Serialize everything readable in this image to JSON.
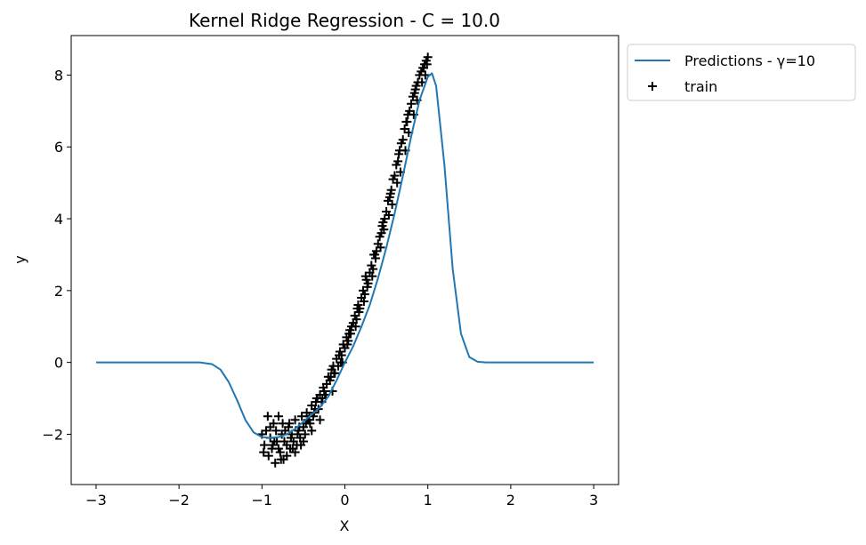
{
  "chart_data": {
    "type": "line",
    "title": "Kernel Ridge Regression - C = 10.0",
    "xlabel": "X",
    "ylabel": "y",
    "xlim": [
      -3.3,
      3.3
    ],
    "ylim": [
      -3.4,
      9.1
    ],
    "xticks": [
      -3,
      -2,
      -1,
      0,
      1,
      2,
      3
    ],
    "xtick_labels": [
      "−3",
      "−2",
      "−1",
      "0",
      "1",
      "2",
      "3"
    ],
    "yticks": [
      -2,
      0,
      2,
      4,
      6,
      8
    ],
    "ytick_labels": [
      "−2",
      "0",
      "2",
      "4",
      "6",
      "8"
    ],
    "legend_position": "outside-top-right",
    "grid": false,
    "series": [
      {
        "name": "Predictions - γ=10",
        "kind": "line",
        "color": "#1f77b4",
        "x": [
          -3.0,
          -2.0,
          -1.75,
          -1.6,
          -1.5,
          -1.4,
          -1.3,
          -1.2,
          -1.1,
          -1.0,
          -0.9,
          -0.8,
          -0.7,
          -0.6,
          -0.5,
          -0.4,
          -0.3,
          -0.2,
          -0.1,
          0.0,
          0.1,
          0.2,
          0.3,
          0.4,
          0.5,
          0.6,
          0.7,
          0.8,
          0.9,
          1.0,
          1.05,
          1.1,
          1.2,
          1.3,
          1.4,
          1.5,
          1.6,
          1.7,
          1.8,
          2.0,
          3.0
        ],
        "y": [
          0.0,
          0.0,
          0.0,
          -0.05,
          -0.2,
          -0.55,
          -1.05,
          -1.6,
          -1.95,
          -2.08,
          -2.1,
          -2.08,
          -2.0,
          -1.85,
          -1.65,
          -1.45,
          -1.25,
          -0.95,
          -0.5,
          0.0,
          0.45,
          1.0,
          1.6,
          2.35,
          3.2,
          4.15,
          5.2,
          6.3,
          7.3,
          7.95,
          8.05,
          7.7,
          5.5,
          2.6,
          0.8,
          0.15,
          0.02,
          0.0,
          0.0,
          0.0,
          0.0
        ]
      },
      {
        "name": "train",
        "kind": "scatter",
        "marker": "+",
        "color": "#000000",
        "x": [
          -1.0,
          -0.97,
          -0.95,
          -0.92,
          -0.9,
          -0.88,
          -0.86,
          -0.84,
          -0.82,
          -0.8,
          -0.78,
          -0.76,
          -0.74,
          -0.72,
          -0.7,
          -0.68,
          -0.66,
          -0.64,
          -0.62,
          -0.6,
          -0.58,
          -0.56,
          -0.54,
          -0.52,
          -0.5,
          -0.48,
          -0.46,
          -0.44,
          -0.42,
          -0.4,
          -0.38,
          -0.36,
          -0.34,
          -0.32,
          -0.3,
          -0.28,
          -0.26,
          -0.24,
          -0.22,
          -0.2,
          -0.18,
          -0.16,
          -0.14,
          -0.12,
          -0.1,
          -0.08,
          -0.06,
          -0.04,
          -0.02,
          0.0,
          0.02,
          0.04,
          0.06,
          0.08,
          0.1,
          0.12,
          0.14,
          0.16,
          0.18,
          0.2,
          0.22,
          0.24,
          0.26,
          0.28,
          0.3,
          0.32,
          0.34,
          0.36,
          0.38,
          0.4,
          0.42,
          0.44,
          0.46,
          0.48,
          0.5,
          0.52,
          0.54,
          0.56,
          0.58,
          0.6,
          0.62,
          0.64,
          0.66,
          0.68,
          0.7,
          0.72,
          0.74,
          0.76,
          0.78,
          0.8,
          0.82,
          0.84,
          0.86,
          0.88,
          0.9,
          0.92,
          0.94,
          0.96,
          0.98,
          1.0,
          -0.98,
          -0.9,
          -0.85,
          -0.8,
          -0.75,
          -0.7,
          -0.65,
          -0.6,
          -0.55,
          -0.5,
          -0.45,
          -0.4,
          -0.35,
          -0.3,
          -0.25,
          -0.15,
          -0.05,
          0.05,
          0.15,
          0.25,
          0.35,
          0.45,
          0.55,
          0.65,
          0.75,
          0.85,
          0.95,
          -0.93,
          -0.87,
          -0.83,
          -0.77,
          -0.73,
          -0.67,
          -0.63,
          -0.57,
          -0.53,
          -0.47,
          -0.43,
          -0.37,
          -0.33,
          -0.27,
          -0.23,
          -0.17,
          -0.13,
          -0.07,
          -0.03,
          0.03,
          0.07,
          0.13,
          0.17,
          0.23,
          0.27,
          0.33,
          0.37,
          0.43,
          0.47,
          0.53,
          0.57,
          0.63,
          0.67,
          0.73,
          0.77,
          0.83,
          0.87,
          0.93,
          0.97,
          0.99
        ],
        "y": [
          -2.0,
          -2.3,
          -1.9,
          -2.6,
          -2.1,
          -2.4,
          -1.7,
          -2.8,
          -2.2,
          -1.5,
          -2.5,
          -2.0,
          -2.7,
          -1.9,
          -2.3,
          -1.8,
          -2.4,
          -2.0,
          -2.2,
          -1.6,
          -2.3,
          -1.9,
          -2.1,
          -1.5,
          -1.8,
          -2.0,
          -1.4,
          -1.6,
          -1.7,
          -1.2,
          -1.5,
          -1.3,
          -1.0,
          -1.3,
          -0.9,
          -1.1,
          -0.7,
          -0.9,
          -0.6,
          -0.4,
          -0.5,
          -0.2,
          -0.1,
          -0.3,
          0.1,
          -0.1,
          0.3,
          0.2,
          0.5,
          0.4,
          0.7,
          0.6,
          0.9,
          1.0,
          1.1,
          1.3,
          1.2,
          1.6,
          1.5,
          1.8,
          2.0,
          1.9,
          2.3,
          2.2,
          2.5,
          2.7,
          2.6,
          3.0,
          3.1,
          3.3,
          3.5,
          3.6,
          3.9,
          4.0,
          4.2,
          4.5,
          4.6,
          4.8,
          5.1,
          5.2,
          5.5,
          5.6,
          5.9,
          6.1,
          6.2,
          6.5,
          6.7,
          6.9,
          7.0,
          7.2,
          7.4,
          7.5,
          7.7,
          7.8,
          8.0,
          8.1,
          8.2,
          8.3,
          8.4,
          8.5,
          -2.5,
          -1.8,
          -2.2,
          -2.4,
          -1.7,
          -2.6,
          -2.1,
          -2.5,
          -1.8,
          -2.2,
          -1.6,
          -1.9,
          -1.1,
          -1.6,
          -0.8,
          -0.8,
          0.0,
          0.8,
          1.5,
          2.4,
          3.0,
          3.8,
          4.7,
          5.8,
          6.7,
          7.6,
          8.2,
          -1.5,
          -2.3,
          -1.9,
          -2.7,
          -2.2,
          -1.7,
          -2.4,
          -2.0,
          -2.3,
          -1.7,
          -1.5,
          -1.4,
          -1.0,
          -1.0,
          -0.9,
          -0.4,
          -0.3,
          0.2,
          0.0,
          0.5,
          0.8,
          1.0,
          1.4,
          1.7,
          2.1,
          2.4,
          2.9,
          3.2,
          3.7,
          4.1,
          4.4,
          5.0,
          5.3,
          5.9,
          6.4,
          6.9,
          7.3,
          7.8,
          8.0,
          8.3
        ]
      }
    ]
  }
}
